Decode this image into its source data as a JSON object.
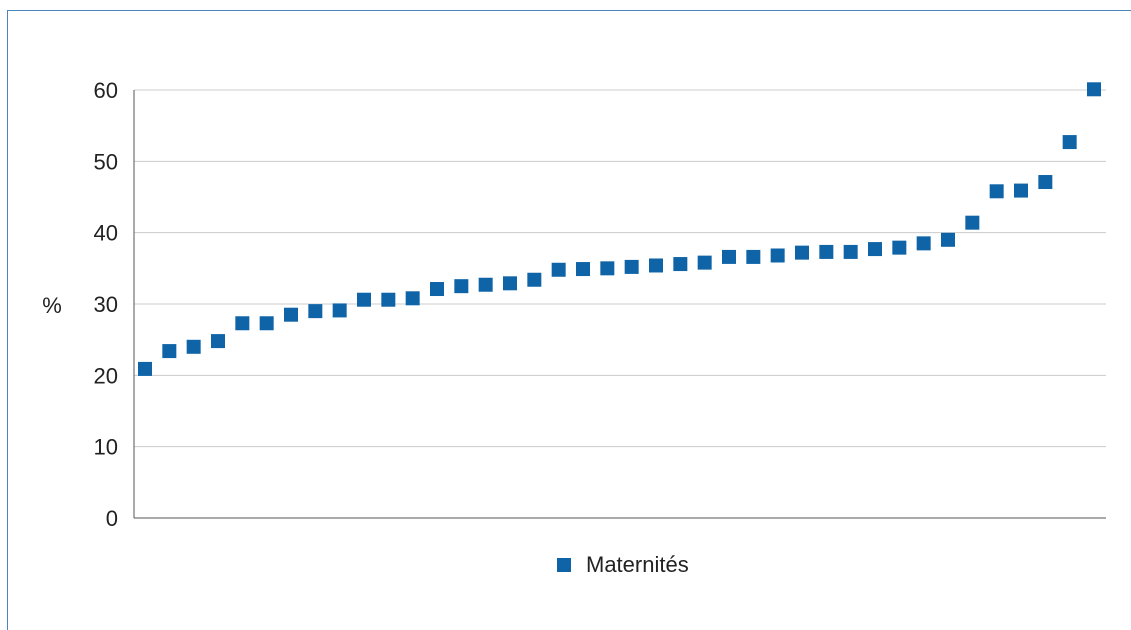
{
  "chart_data": {
    "type": "scatter",
    "ylabel": "%",
    "xlabel": "",
    "ylim": [
      0,
      60
    ],
    "yticks": [
      0,
      10,
      20,
      30,
      40,
      50,
      60
    ],
    "grid": true,
    "legend_position": "bottom-center",
    "series": [
      {
        "name": "Maternités",
        "color": "#0f64a8",
        "values": [
          20.9,
          23.4,
          24.0,
          24.8,
          27.3,
          27.3,
          28.5,
          29.0,
          29.1,
          30.6,
          30.6,
          30.8,
          32.1,
          32.5,
          32.7,
          32.9,
          33.4,
          34.8,
          34.9,
          35.0,
          35.2,
          35.4,
          35.6,
          35.8,
          36.6,
          36.6,
          36.8,
          37.2,
          37.3,
          37.3,
          37.7,
          37.9,
          38.5,
          39.0,
          41.4,
          45.8,
          45.9,
          47.1,
          52.7,
          60.1
        ]
      }
    ]
  }
}
